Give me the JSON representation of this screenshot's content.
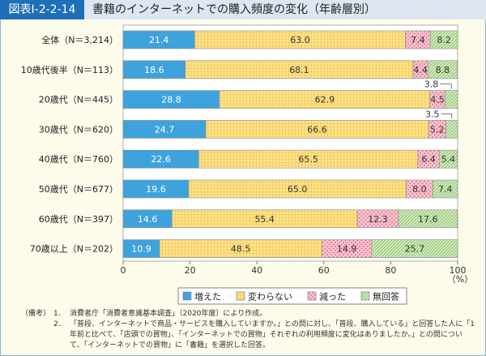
{
  "header": {
    "figure_label": "図表Ⅰ-2-2-14",
    "title": "書籍のインターネットでの購入頻度の変化（年齢層別）"
  },
  "chart_data": {
    "type": "bar",
    "stacked": true,
    "orientation": "horizontal",
    "title": "書籍のインターネットでの購入頻度の変化（年齢層別）",
    "categories": [
      "全体（N＝3,214）",
      "10歳代後半（N＝113）",
      "20歳代（N＝445）",
      "30歳代（N＝620）",
      "40歳代（N＝760）",
      "50歳代（N＝677）",
      "60歳代（N＝397）",
      "70歳以上（N＝202）"
    ],
    "series": [
      {
        "name": "増えた",
        "color": "#3ea3dd",
        "values": [
          21.4,
          18.6,
          28.8,
          24.7,
          22.6,
          19.6,
          14.6,
          10.9
        ]
      },
      {
        "name": "変わらない",
        "color": "#fde38c",
        "values": [
          63.0,
          68.1,
          62.9,
          66.6,
          65.5,
          65.0,
          55.4,
          48.5
        ]
      },
      {
        "name": "減った",
        "color": "#f5b6c4",
        "values": [
          7.4,
          4.4,
          4.5,
          5.2,
          6.4,
          8.0,
          12.3,
          14.9
        ]
      },
      {
        "name": "無回答",
        "color": "#bfe0a8",
        "values": [
          8.2,
          8.8,
          3.8,
          3.5,
          5.4,
          7.4,
          17.6,
          25.7
        ]
      }
    ],
    "value_labels": [
      [
        "21.4",
        "63.0",
        "7.4",
        "8.2"
      ],
      [
        "18.6",
        "68.1",
        "4.4",
        "8.8"
      ],
      [
        "28.8",
        "62.9",
        "4.5",
        "3.8"
      ],
      [
        "24.7",
        "66.6",
        "5.2",
        "3.5"
      ],
      [
        "22.6",
        "65.5",
        "6.4",
        "5.4"
      ],
      [
        "19.6",
        "65.0",
        "8.0",
        "7.4"
      ],
      [
        "14.6",
        "55.4",
        "12.3",
        "17.6"
      ],
      [
        "10.9",
        "48.5",
        "14.9",
        "25.7"
      ]
    ],
    "xlim": [
      0,
      100
    ],
    "xticks": [
      "0",
      "20",
      "40",
      "60",
      "80",
      "100"
    ],
    "xunit": "（%）",
    "legend_position": "bottom"
  },
  "notes": {
    "head": "（備考）",
    "items": [
      {
        "num": "1．",
        "text": "消費者庁「消費者意識基本調査」（2020年度）により作成。"
      },
      {
        "num": "2．",
        "text": "「普段、インターネットで商品・サービスを購入していますか。」との問に対し、「普段、購入している」と回答した人に「1年前と比べて、「店頭での買物」、「インターネットでの買物」それぞれの利用頻度に変化はありましたか。」との問について、「インターネットでの買物」に「書籍」を選択した回答。"
      }
    ]
  }
}
